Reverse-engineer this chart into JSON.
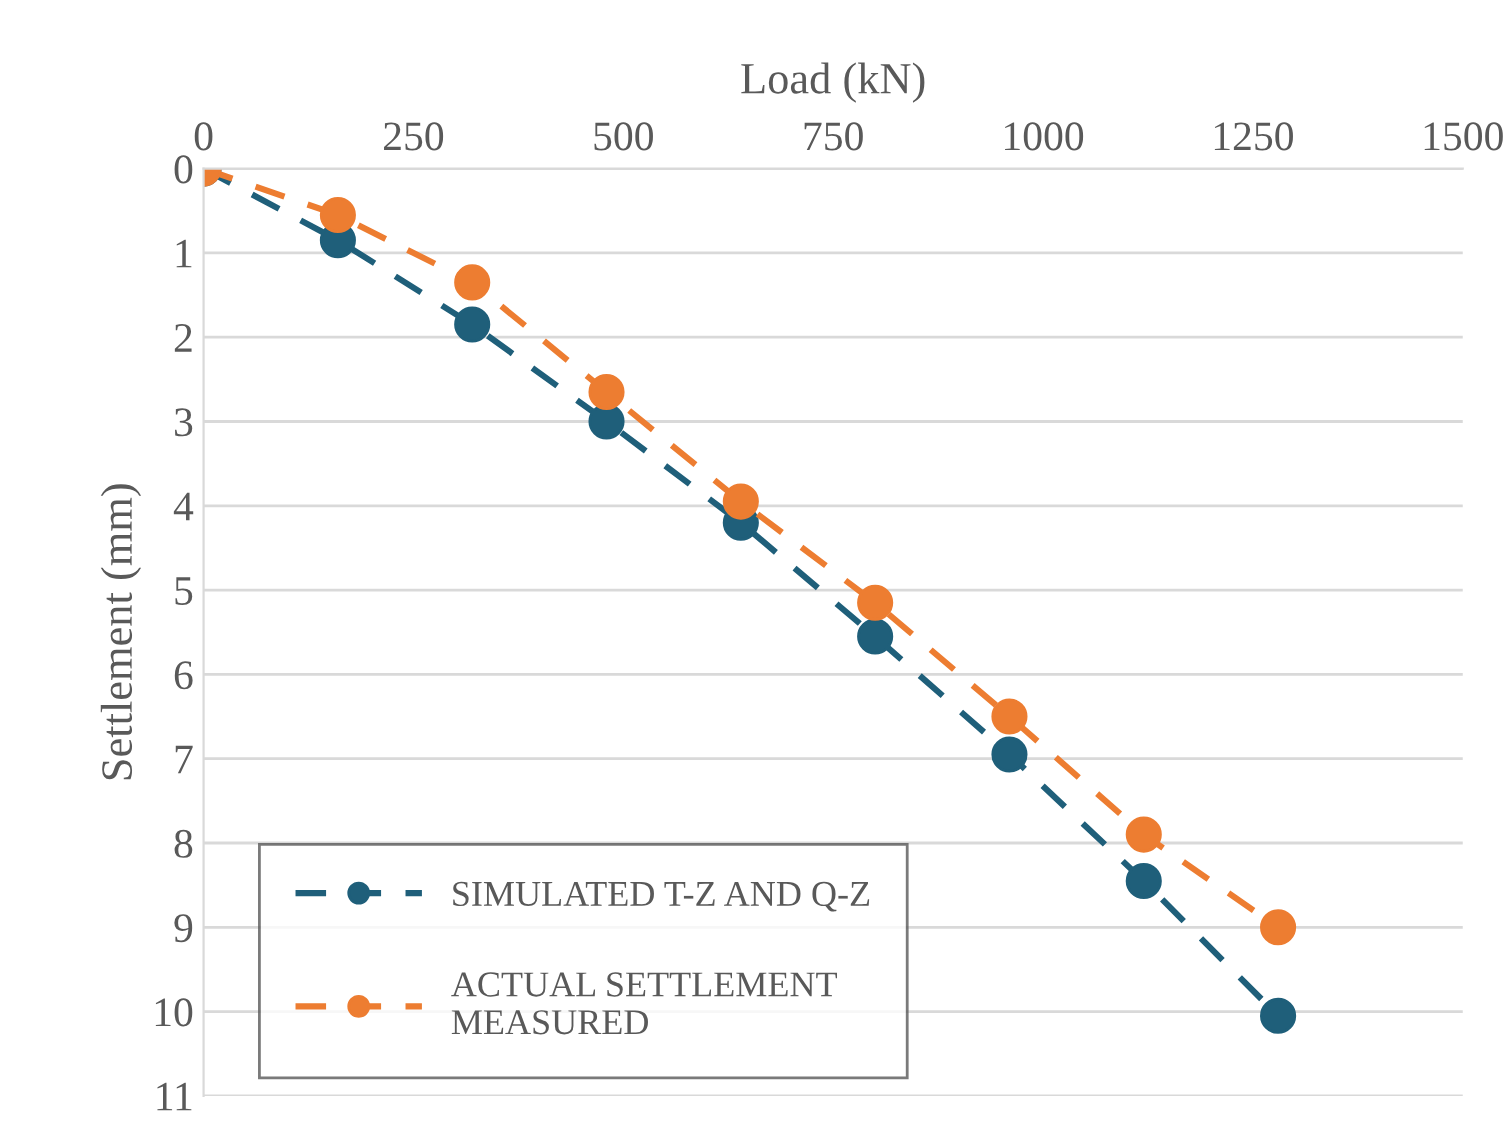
{
  "chart_data": {
    "type": "line",
    "xlabel": "Load (kN)",
    "ylabel": "Settlement (mm)",
    "x": [
      0,
      160,
      320,
      480,
      640,
      800,
      960,
      1120,
      1280
    ],
    "series": [
      {
        "name": "SIMULATED T-Z AND Q-Z",
        "color": "#1f5f7a",
        "values": [
          0,
          0.85,
          1.85,
          3.0,
          4.2,
          5.55,
          6.95,
          8.45,
          10.05
        ]
      },
      {
        "name": "ACTUAL SETTLEMENT MEASURED",
        "color": "#ed7d31",
        "values": [
          0,
          0.55,
          1.35,
          2.65,
          3.95,
          5.15,
          6.5,
          7.9,
          9.0
        ]
      }
    ],
    "xlim": [
      0,
      1500
    ],
    "xticks": [
      0,
      250,
      500,
      750,
      1000,
      1250,
      1500
    ],
    "ylim": [
      11,
      0
    ],
    "yticks": [
      0,
      1,
      2,
      3,
      4,
      5,
      6,
      7,
      8,
      9,
      10,
      11
    ],
    "grid": "y",
    "legend": "bottom left",
    "marker": "circle",
    "line_style": "dashed"
  }
}
